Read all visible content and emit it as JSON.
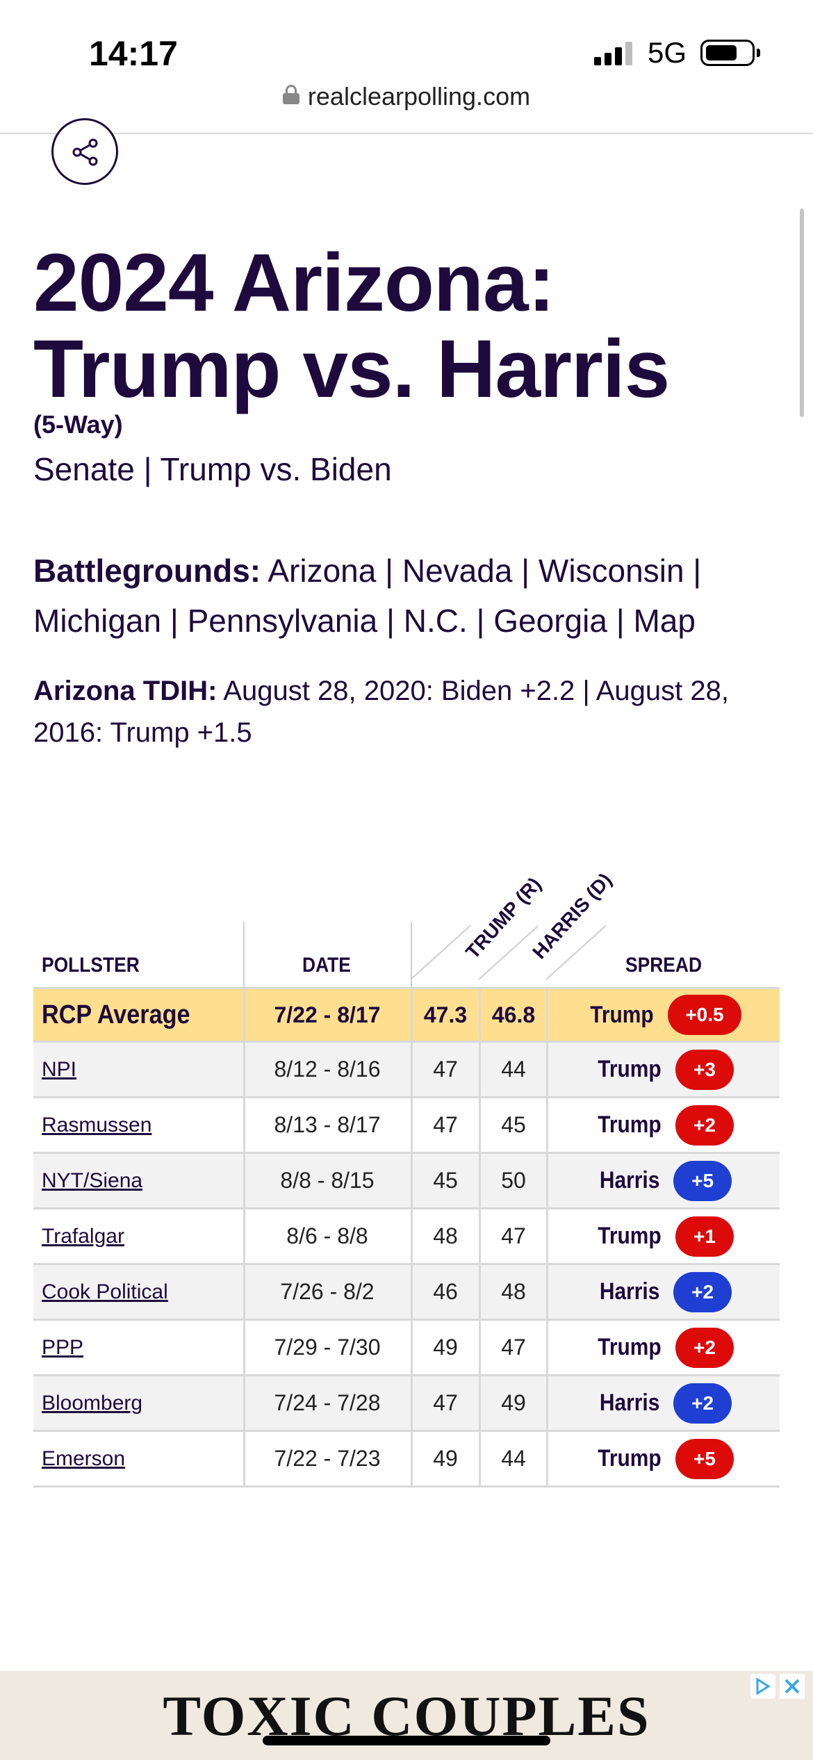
{
  "status_bar": {
    "time": "14:17",
    "network": "5G"
  },
  "browser": {
    "url": "realclearpolling.com"
  },
  "page": {
    "title_line1": "2024 Arizona:",
    "title_line2": "Trump vs. Harris",
    "subtitle": "(5-Way)",
    "related": [
      "Senate",
      "Trump vs. Biden"
    ],
    "battlegrounds_label": "Battlegrounds:",
    "battlegrounds": [
      "Arizona",
      "Nevada",
      "Wisconsin",
      "Michigan",
      "Pennsylvania",
      "N.C.",
      "Georgia",
      "Map"
    ],
    "tdih_label": "Arizona TDIH:",
    "tdih_text": "August 28, 2020: Biden +2.2 | August 28, 2016: Trump +1.5"
  },
  "table": {
    "headers": {
      "pollster": "POLLSTER",
      "date": "DATE",
      "trump": "TRUMP (R)",
      "harris": "HARRIS (D)",
      "spread": "SPREAD"
    },
    "average": {
      "pollster": "RCP Average",
      "date": "7/22 - 8/17",
      "trump": "47.3",
      "harris": "46.8",
      "winner": "Trump",
      "spread": "+0.5",
      "party": "r"
    },
    "rows": [
      {
        "pollster": "NPI",
        "date": "8/12 - 8/16",
        "trump": "47",
        "harris": "44",
        "winner": "Trump",
        "spread": "+3",
        "party": "r"
      },
      {
        "pollster": "Rasmussen",
        "date": "8/13 - 8/17",
        "trump": "47",
        "harris": "45",
        "winner": "Trump",
        "spread": "+2",
        "party": "r"
      },
      {
        "pollster": "NYT/Siena",
        "date": "8/8 - 8/15",
        "trump": "45",
        "harris": "50",
        "winner": "Harris",
        "spread": "+5",
        "party": "d"
      },
      {
        "pollster": "Trafalgar",
        "date": "8/6 - 8/8",
        "trump": "48",
        "harris": "47",
        "winner": "Trump",
        "spread": "+1",
        "party": "r"
      },
      {
        "pollster": "Cook Political",
        "date": "7/26 - 8/2",
        "trump": "46",
        "harris": "48",
        "winner": "Harris",
        "spread": "+2",
        "party": "d"
      },
      {
        "pollster": "PPP",
        "date": "7/29 - 7/30",
        "trump": "49",
        "harris": "47",
        "winner": "Trump",
        "spread": "+2",
        "party": "r"
      },
      {
        "pollster": "Bloomberg",
        "date": "7/24 - 7/28",
        "trump": "47",
        "harris": "49",
        "winner": "Harris",
        "spread": "+2",
        "party": "d"
      },
      {
        "pollster": "Emerson",
        "date": "7/22 - 7/23",
        "trump": "49",
        "harris": "44",
        "winner": "Trump",
        "spread": "+5",
        "party": "r"
      }
    ]
  },
  "ad": {
    "text": "TOXIC COUPLES"
  },
  "colors": {
    "republican": "#dd0a0a",
    "democrat": "#1f3fd2",
    "average_row": "#fddf8f",
    "text": "#1e0a3c"
  }
}
